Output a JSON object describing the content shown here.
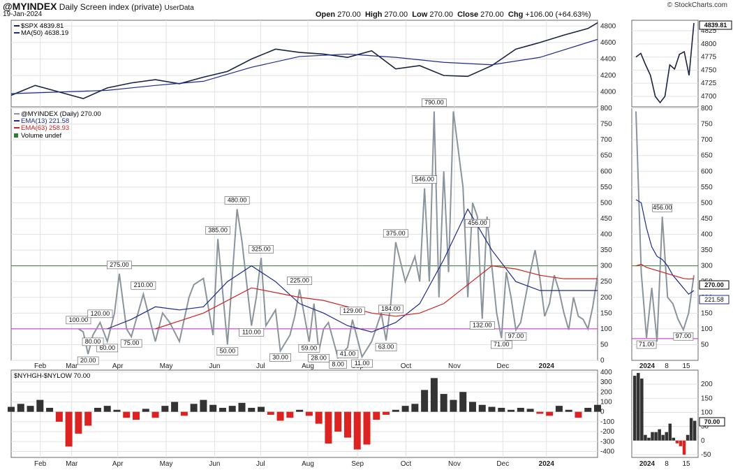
{
  "header": {
    "symbol": "@MYINDEX",
    "subtitle": "Daily Screen index (private)",
    "userdata": "UserData",
    "date": "19-Jan-2024",
    "credit": "© StockCharts.com",
    "ohlc": {
      "open_label": "Open",
      "open": "270.00",
      "high_label": "High",
      "high": "270.00",
      "low_label": "Low",
      "low": "270.00",
      "close_label": "Close",
      "close": "270.00",
      "chg_label": "Chg",
      "chg": "+106.00 (+64.63%)"
    }
  },
  "legends": {
    "spx": "$SPX 4839.81",
    "ma50": "MA(50) 4638.19",
    "idx": "@MYINDEX (Daily) 270.00",
    "ema13": "EMA(13) 221.58",
    "ema63": "EMA(63) 258.93",
    "volume": "Volume undef",
    "nyhl": "$NYHGH-$NYLOW 70.00"
  },
  "colors": {
    "price": "#1a2340",
    "ma": "#1c2a8a",
    "idx": "#8a949c",
    "ema13": "#1c2a8a",
    "ema63": "#cc2222",
    "hline_green": "#2e7d32",
    "hline_magenta": "#cc22cc",
    "bar_pos": "#333333",
    "bar_neg": "#dd2222"
  },
  "chart_data": [
    {
      "type": "line",
      "name_label": "$SPX",
      "ylim": [
        3820,
        4870
      ],
      "yticks": [
        "4000",
        "4200",
        "4400",
        "4600",
        "4800"
      ],
      "xticks": [
        "Feb",
        "Mar",
        "Apr",
        "May",
        "Jun",
        "Jul",
        "Aug",
        "Sep",
        "Oct",
        "Nov",
        "Dec",
        "2024"
      ],
      "last_value": "4839.81",
      "series": [
        {
          "name": "$SPX",
          "x": [
            0,
            10,
            20,
            30,
            40,
            50,
            60,
            70,
            80,
            90,
            100,
            110,
            120,
            130,
            140,
            150,
            160,
            170,
            180,
            190,
            200,
            210,
            220,
            230,
            240,
            244
          ],
          "values": [
            3960,
            4080,
            4000,
            3920,
            4050,
            4110,
            4150,
            4100,
            4180,
            4250,
            4400,
            4520,
            4480,
            4460,
            4420,
            4500,
            4280,
            4320,
            4200,
            4190,
            4320,
            4520,
            4600,
            4690,
            4770,
            4839.81
          ]
        },
        {
          "name": "MA(50)",
          "x": [
            0,
            20,
            40,
            60,
            80,
            100,
            120,
            140,
            160,
            180,
            200,
            220,
            244
          ],
          "values": [
            3980,
            4000,
            4020,
            4080,
            4130,
            4300,
            4430,
            4460,
            4420,
            4360,
            4330,
            4420,
            4638.19
          ]
        }
      ]
    },
    {
      "type": "line",
      "name_label": "@MYINDEX",
      "ylim": [
        0,
        800
      ],
      "yticks": [
        "0",
        "50",
        "100",
        "150",
        "200",
        "250",
        "300",
        "350",
        "400",
        "450",
        "500",
        "550",
        "600",
        "650",
        "700",
        "750",
        "800"
      ],
      "hlines": [
        300,
        100
      ],
      "series": [
        {
          "name": "@MYINDEX",
          "x": [
            28,
            30,
            32,
            34,
            37,
            40,
            43,
            45,
            48,
            50,
            55,
            60,
            63,
            66,
            70,
            74,
            76,
            80,
            84,
            86,
            90,
            94,
            96,
            100,
            102,
            104,
            106,
            110,
            112,
            116,
            118,
            120,
            124,
            126,
            128,
            130,
            132,
            136,
            140,
            142,
            146,
            150,
            154,
            156,
            158,
            160,
            164,
            166,
            168,
            170,
            172,
            174,
            176,
            178,
            180,
            182,
            184,
            188,
            190,
            192,
            194,
            196,
            198,
            200,
            202,
            204,
            206,
            208,
            210,
            212,
            214,
            216,
            218,
            220,
            222,
            224,
            226,
            228,
            230,
            232,
            234,
            236,
            238,
            240,
            242,
            244
          ],
          "values": [
            100,
            90,
            20,
            80,
            120,
            60,
            150,
            275,
            100,
            75,
            210,
            60,
            150,
            120,
            60,
            200,
            240,
            260,
            80,
            385,
            50,
            480,
            380,
            110,
            200,
            325,
            110,
            160,
            30,
            80,
            140,
            225,
            59,
            180,
            28,
            100,
            120,
            8,
            41,
            129,
            11,
            60,
            150,
            63,
            184,
            375,
            250,
            290,
            330,
            250,
            546,
            250,
            790,
            200,
            600,
            280,
            790,
            550,
            200,
            500,
            456,
            132,
            456,
            300,
            150,
            71,
            280,
            200,
            97,
            120,
            200,
            280,
            350,
            260,
            140,
            180,
            270,
            220,
            150,
            97,
            200,
            140,
            130,
            100,
            170,
            270
          ]
        },
        {
          "name": "EMA(13)",
          "x": [
            40,
            50,
            60,
            70,
            80,
            90,
            100,
            110,
            120,
            130,
            140,
            150,
            160,
            170,
            180,
            190,
            200,
            210,
            220,
            230,
            240,
            244
          ],
          "values": [
            100,
            130,
            170,
            160,
            170,
            250,
            300,
            250,
            180,
            150,
            110,
            90,
            120,
            180,
            320,
            480,
            350,
            250,
            221.58,
            221.58,
            221.58,
            221.58
          ]
        },
        {
          "name": "EMA(63)",
          "x": [
            60,
            80,
            100,
            120,
            130,
            140,
            150,
            160,
            170,
            180,
            190,
            200,
            210,
            220,
            230,
            240,
            244
          ],
          "values": [
            100,
            150,
            230,
            200,
            190,
            170,
            150,
            140,
            150,
            180,
            240,
            300,
            290,
            270,
            258.93,
            258.93,
            258.93
          ]
        }
      ],
      "annotations": [
        "100.00",
        "20.00",
        "275.00",
        "75.00",
        "210.00",
        "60.00",
        "385.00",
        "80.00",
        "480.00",
        "50.00",
        "325.00",
        "110.00",
        "30.00",
        "225.00",
        "59.00",
        "28.00",
        "120.00",
        "8.00",
        "41.00",
        "129.00",
        "11.00",
        "184.00",
        "63.00",
        "375.00",
        "546.00",
        "790.00",
        "132.00",
        "456.00",
        "71.00",
        "97.00"
      ],
      "last_values": [
        "270.00",
        "221.58",
        "258.93"
      ]
    },
    {
      "type": "bar",
      "name_label": "$NYHGH-$NYLOW",
      "ylim": [
        -460,
        420
      ],
      "yticks": [
        "-400",
        "-300",
        "-200",
        "-100",
        "0",
        "100",
        "200",
        "300",
        "400"
      ],
      "last_value": "70.00",
      "x": [
        0,
        4,
        8,
        12,
        16,
        20,
        24,
        28,
        32,
        36,
        40,
        44,
        48,
        52,
        56,
        60,
        64,
        68,
        72,
        76,
        80,
        84,
        88,
        92,
        96,
        100,
        104,
        108,
        112,
        116,
        120,
        124,
        128,
        132,
        136,
        140,
        144,
        148,
        152,
        156,
        160,
        164,
        168,
        172,
        176,
        180,
        184,
        188,
        192,
        196,
        200,
        204,
        208,
        212,
        216,
        220,
        224,
        228,
        232,
        236,
        240,
        244
      ],
      "values": [
        50,
        80,
        60,
        120,
        40,
        -100,
        -350,
        -220,
        -140,
        40,
        60,
        20,
        -60,
        -80,
        30,
        -60,
        60,
        100,
        -40,
        80,
        120,
        70,
        40,
        60,
        90,
        40,
        50,
        -30,
        -90,
        -60,
        20,
        -40,
        -120,
        -320,
        -200,
        -260,
        -380,
        -330,
        -80,
        -30,
        20,
        60,
        80,
        220,
        340,
        180,
        120,
        200,
        100,
        70,
        50,
        40,
        20,
        40,
        30,
        -20,
        -40,
        60,
        20,
        -60,
        40,
        70
      ]
    }
  ],
  "inset": {
    "xticks": [
      "2024",
      "8",
      "15"
    ],
    "spx_yticks": [
      "4700",
      "4725",
      "4750",
      "4775",
      "4800",
      "4825"
    ],
    "spx_last": "4839.81",
    "spx_values": [
      4775,
      4782,
      4760,
      4740,
      4700,
      4688,
      4700,
      4760,
      4752,
      4780,
      4785,
      4740,
      4839.81
    ],
    "idx_yticks": [
      "50",
      "100",
      "150",
      "200",
      "250",
      "300",
      "350",
      "400",
      "450",
      "500",
      "550",
      "600",
      "650",
      "700",
      "750",
      "800"
    ],
    "idx_values": [
      790,
      280,
      71,
      230,
      60,
      456,
      200,
      180,
      130,
      97,
      150,
      270
    ],
    "ema13_values": [
      510,
      500,
      420,
      360,
      330,
      320,
      300,
      270,
      250,
      230,
      210,
      221.58
    ],
    "ema63_values": [
      300,
      305,
      295,
      290,
      285,
      280,
      275,
      270,
      265,
      260,
      258,
      258.93
    ],
    "idx_labels": [
      "456.00",
      "71.00",
      "97.00"
    ],
    "idx_last": [
      "270.00",
      "221.58"
    ],
    "nyhl_yticks": [
      "-50",
      "0",
      "50",
      "100",
      "150",
      "200"
    ],
    "nyhl_last": "70.00",
    "nyhl_values": [
      230,
      240,
      220,
      20,
      10,
      30,
      30,
      40,
      20,
      30,
      60,
      10,
      -10,
      -20,
      -50,
      20,
      80,
      70
    ]
  }
}
